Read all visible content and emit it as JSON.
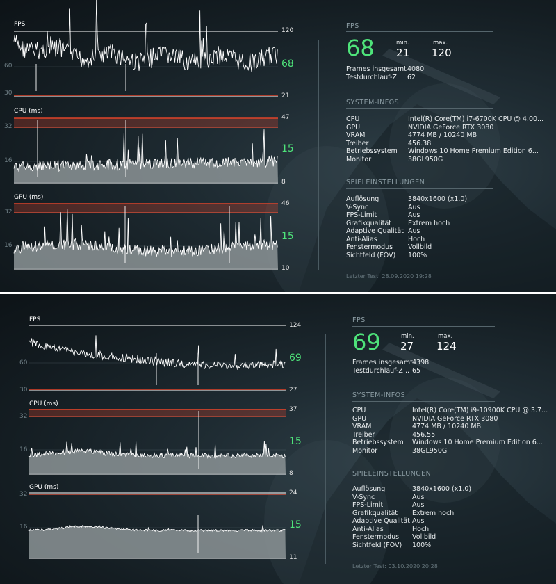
{
  "panels": [
    {
      "graphs": [
        {
          "title": "FPS",
          "top_tick": "120",
          "bottom_tick": "21",
          "current": "68",
          "ylabels": [
            "60",
            "30"
          ]
        },
        {
          "title": "CPU (ms)",
          "top_tick": "47",
          "bottom_tick": "8",
          "current": "15",
          "ylabels": [
            "32",
            "16"
          ]
        },
        {
          "title": "GPU (ms)",
          "top_tick": "46",
          "bottom_tick": "10",
          "current": "15",
          "ylabels": [
            "32",
            "16"
          ]
        }
      ],
      "fps_header": "FPS",
      "fps_value": "68",
      "min_label": "min.",
      "min_value": "21",
      "max_label": "max.",
      "max_value": "120",
      "frames_label": "Frames insgesamt",
      "frames_value": "4080",
      "testrun_label": "Testdurchlauf-Z...",
      "testrun_value": "62",
      "system_header": "SYSTEM-INFOS",
      "system": [
        {
          "k": "CPU",
          "v": "Intel(R) Core(TM) i7-6700K CPU @ 4.00..."
        },
        {
          "k": "GPU",
          "v": "NVIDIA GeForce RTX 3080"
        },
        {
          "k": "VRAM",
          "v": "4774 MB / 10240 MB"
        },
        {
          "k": "Treiber",
          "v": "456.38"
        },
        {
          "k": "Betriebssystem",
          "v": "Windows 10 Home Premium Edition 6..."
        },
        {
          "k": "Monitor",
          "v": "38GL950G"
        }
      ],
      "game_header": "SPIELEINSTELLUNGEN",
      "game": [
        {
          "k": "Auflösung",
          "v": "3840x1600 (x1.0)"
        },
        {
          "k": "V-Sync",
          "v": "Aus"
        },
        {
          "k": "FPS-Limit",
          "v": "Aus"
        },
        {
          "k": "Grafikqualität",
          "v": "Extrem hoch"
        },
        {
          "k": "Adaptive Qualität",
          "v": "Aus"
        },
        {
          "k": "Anti-Alias",
          "v": "Hoch"
        },
        {
          "k": "Fenstermodus",
          "v": "Vollbild"
        },
        {
          "k": "Sichtfeld (FOV)",
          "v": "100%"
        }
      ],
      "last_test": "Letzter Test: 28.09.2020 19:28"
    },
    {
      "graphs": [
        {
          "title": "FPS",
          "top_tick": "124",
          "bottom_tick": "27",
          "current": "69",
          "ylabels": [
            "60",
            "30"
          ]
        },
        {
          "title": "CPU (ms)",
          "top_tick": "37",
          "bottom_tick": "8",
          "current": "15",
          "ylabels": [
            "32",
            "16"
          ]
        },
        {
          "title": "GPU (ms)",
          "top_tick": "24",
          "bottom_tick": "11",
          "current": "15",
          "ylabels": [
            "32",
            "16"
          ]
        }
      ],
      "fps_header": "FPS",
      "fps_value": "69",
      "min_label": "min.",
      "min_value": "27",
      "max_label": "max.",
      "max_value": "124",
      "frames_label": "Frames insgesamt",
      "frames_value": "4398",
      "testrun_label": "Testdurchlauf-Z...",
      "testrun_value": "65",
      "system_header": "SYSTEM-INFOS",
      "system": [
        {
          "k": "CPU",
          "v": "Intel(R) Core(TM) i9-10900K CPU @ 3.7..."
        },
        {
          "k": "GPU",
          "v": "NVIDIA GeForce RTX 3080"
        },
        {
          "k": "VRAM",
          "v": "4774 MB / 10240 MB"
        },
        {
          "k": "Treiber",
          "v": "456.55"
        },
        {
          "k": "Betriebssystem",
          "v": "Windows 10 Home Premium Edition 6..."
        },
        {
          "k": "Monitor",
          "v": "38GL950G"
        }
      ],
      "game_header": "SPIELEINSTELLUNGEN",
      "game": [
        {
          "k": "Auflösung",
          "v": "3840x1600 (x1.0)"
        },
        {
          "k": "V-Sync",
          "v": "Aus"
        },
        {
          "k": "FPS-Limit",
          "v": "Aus"
        },
        {
          "k": "Grafikqualität",
          "v": "Extrem hoch"
        },
        {
          "k": "Adaptive Qualität",
          "v": "Aus"
        },
        {
          "k": "Anti-Alias",
          "v": "Hoch"
        },
        {
          "k": "Fenstermodus",
          "v": "Vollbild"
        },
        {
          "k": "Sichtfeld (FOV)",
          "v": "100%"
        }
      ],
      "last_test": "Letzter Test: 03.10.2020 20:28"
    }
  ],
  "colors": {
    "accent_green": "#4ee37a",
    "limit_red": "#e0442a",
    "fill_gray": "#8c9497"
  }
}
